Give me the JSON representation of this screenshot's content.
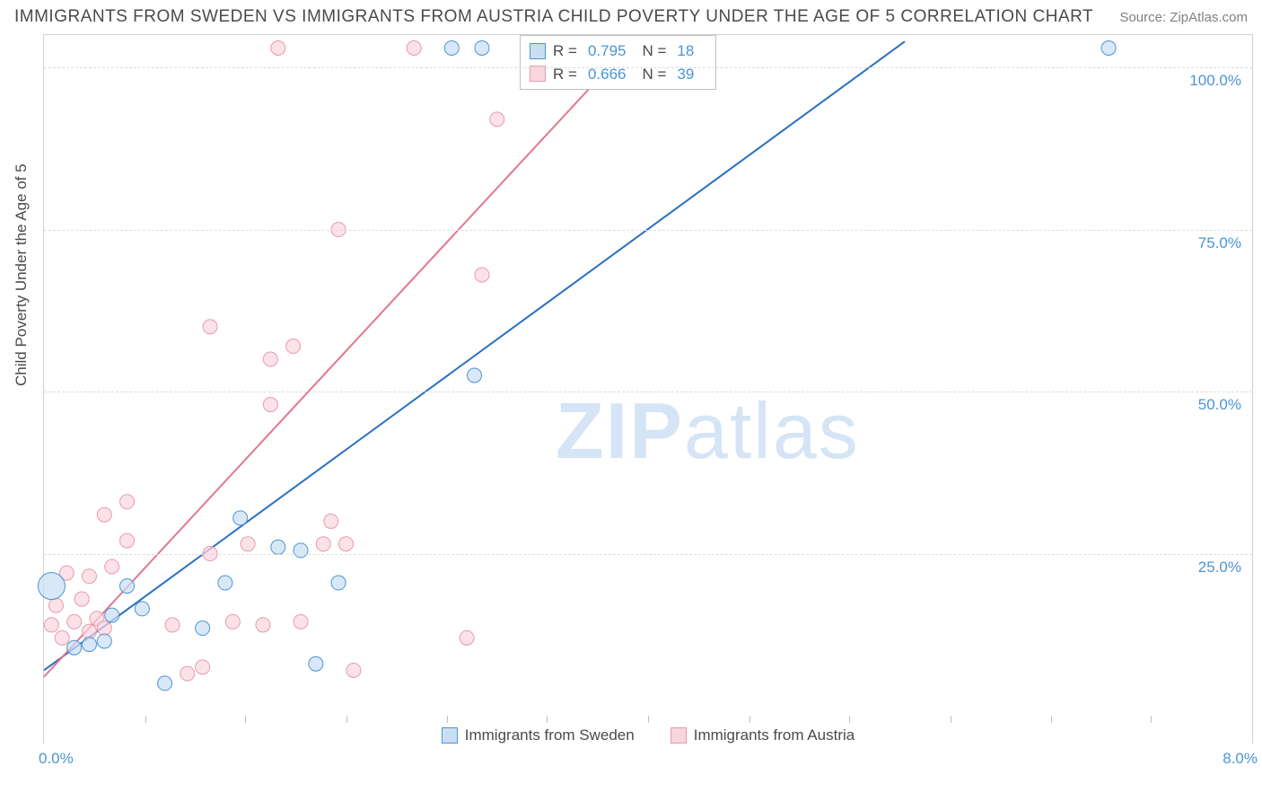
{
  "title": "IMMIGRANTS FROM SWEDEN VS IMMIGRANTS FROM AUSTRIA CHILD POVERTY UNDER THE AGE OF 5 CORRELATION CHART",
  "source": "Source: ZipAtlas.com",
  "watermark_a": "ZIP",
  "watermark_b": "atlas",
  "chart": {
    "type": "scatter",
    "y_label": "Child Poverty Under the Age of 5",
    "x_min": 0.0,
    "x_max": 8.0,
    "y_min": 0.0,
    "y_max": 105.0,
    "x_ticks": [
      0.0,
      8.0
    ],
    "x_tick_labels": [
      "0.0%",
      "8.0%"
    ],
    "y_grid": [
      25.0,
      50.0,
      75.0,
      100.0
    ],
    "y_tick_labels": [
      "25.0%",
      "50.0%",
      "75.0%",
      "100.0%"
    ],
    "x_minor_ticks": [
      0.67,
      1.33,
      2.0,
      2.67,
      3.33,
      4.0,
      4.67,
      5.33,
      6.0,
      6.67,
      7.33
    ],
    "background_color": "#ffffff",
    "grid_color": "#dcdcdc",
    "series": [
      {
        "name": "Immigrants from Sweden",
        "stroke": "#4a95d6",
        "fill": "#c9def3",
        "r_value": "0.795",
        "n_value": "18",
        "trend": {
          "x1": 0.0,
          "y1": 7.0,
          "x2": 5.7,
          "y2": 104.0,
          "color": "#2a6fc3",
          "width": 2
        },
        "points": [
          {
            "x": 0.05,
            "y": 20.0,
            "r": 15
          },
          {
            "x": 0.2,
            "y": 10.5,
            "r": 8
          },
          {
            "x": 0.3,
            "y": 11.0,
            "r": 8
          },
          {
            "x": 0.4,
            "y": 11.5,
            "r": 8
          },
          {
            "x": 0.45,
            "y": 15.5,
            "r": 8
          },
          {
            "x": 0.55,
            "y": 20.0,
            "r": 8
          },
          {
            "x": 0.65,
            "y": 16.5,
            "r": 8
          },
          {
            "x": 0.8,
            "y": 5.0,
            "r": 8
          },
          {
            "x": 1.05,
            "y": 13.5,
            "r": 8
          },
          {
            "x": 1.2,
            "y": 20.5,
            "r": 8
          },
          {
            "x": 1.3,
            "y": 30.5,
            "r": 8
          },
          {
            "x": 1.55,
            "y": 26.0,
            "r": 8
          },
          {
            "x": 1.7,
            "y": 25.5,
            "r": 8
          },
          {
            "x": 1.8,
            "y": 8.0,
            "r": 8
          },
          {
            "x": 1.95,
            "y": 20.5,
            "r": 8
          },
          {
            "x": 2.85,
            "y": 52.5,
            "r": 8
          },
          {
            "x": 2.7,
            "y": 103.0,
            "r": 8
          },
          {
            "x": 2.9,
            "y": 103.0,
            "r": 8
          },
          {
            "x": 7.05,
            "y": 103.0,
            "r": 8
          }
        ]
      },
      {
        "name": "Immigrants from Austria",
        "stroke": "#e89aad",
        "fill": "#f9d5de",
        "r_value": "0.666",
        "n_value": "39",
        "trend": {
          "x1": 0.0,
          "y1": 6.0,
          "x2": 3.9,
          "y2": 104.0,
          "color": "#e1788f",
          "width": 2
        },
        "points": [
          {
            "x": 0.05,
            "y": 14.0,
            "r": 8
          },
          {
            "x": 0.08,
            "y": 17.0,
            "r": 8
          },
          {
            "x": 0.12,
            "y": 12.0,
            "r": 8
          },
          {
            "x": 0.15,
            "y": 22.0,
            "r": 8
          },
          {
            "x": 0.2,
            "y": 14.5,
            "r": 8
          },
          {
            "x": 0.25,
            "y": 18.0,
            "r": 8
          },
          {
            "x": 0.3,
            "y": 13.0,
            "r": 8
          },
          {
            "x": 0.3,
            "y": 21.5,
            "r": 8
          },
          {
            "x": 0.35,
            "y": 15.0,
            "r": 8
          },
          {
            "x": 0.4,
            "y": 13.5,
            "r": 8
          },
          {
            "x": 0.4,
            "y": 31.0,
            "r": 8
          },
          {
            "x": 0.45,
            "y": 23.0,
            "r": 8
          },
          {
            "x": 0.55,
            "y": 27.0,
            "r": 8
          },
          {
            "x": 0.55,
            "y": 33.0,
            "r": 8
          },
          {
            "x": 0.85,
            "y": 14.0,
            "r": 8
          },
          {
            "x": 0.95,
            "y": 6.5,
            "r": 8
          },
          {
            "x": 1.05,
            "y": 7.5,
            "r": 8
          },
          {
            "x": 1.1,
            "y": 25.0,
            "r": 8
          },
          {
            "x": 1.1,
            "y": 60.0,
            "r": 8
          },
          {
            "x": 1.25,
            "y": 14.5,
            "r": 8
          },
          {
            "x": 1.35,
            "y": 26.5,
            "r": 8
          },
          {
            "x": 1.45,
            "y": 14.0,
            "r": 8
          },
          {
            "x": 1.5,
            "y": 48.0,
            "r": 8
          },
          {
            "x": 1.5,
            "y": 55.0,
            "r": 8
          },
          {
            "x": 1.55,
            "y": 103.0,
            "r": 8
          },
          {
            "x": 1.65,
            "y": 57.0,
            "r": 8
          },
          {
            "x": 1.7,
            "y": 14.5,
            "r": 8
          },
          {
            "x": 1.85,
            "y": 26.5,
            "r": 8
          },
          {
            "x": 1.9,
            "y": 30.0,
            "r": 8
          },
          {
            "x": 1.95,
            "y": 75.0,
            "r": 8
          },
          {
            "x": 2.0,
            "y": 26.5,
            "r": 8
          },
          {
            "x": 2.05,
            "y": 7.0,
            "r": 8
          },
          {
            "x": 2.45,
            "y": 103.0,
            "r": 8
          },
          {
            "x": 2.8,
            "y": 12.0,
            "r": 8
          },
          {
            "x": 2.9,
            "y": 68.0,
            "r": 8
          },
          {
            "x": 3.0,
            "y": 92.0,
            "r": 8
          },
          {
            "x": 3.2,
            "y": 103.0,
            "r": 8
          }
        ]
      }
    ]
  },
  "legend": {
    "r_label": "R =",
    "n_label": "N ="
  }
}
